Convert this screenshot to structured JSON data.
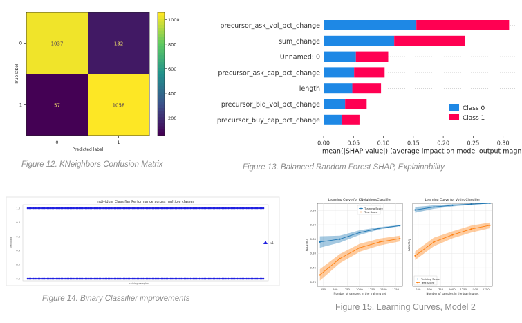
{
  "captions": {
    "fig12": "Figure 12. KNeighbors Confusion Matrix",
    "fig13": "Figure 13. Balanced Random Forest SHAP, Explainability",
    "fig14": "Figure 14. Binary Classifier improvements",
    "fig15": "Figure 15. Learning Curves, Model 2"
  },
  "chart_data": [
    {
      "type": "heatmap",
      "title": "",
      "xlabel": "Predicted label",
      "ylabel": "True label",
      "x_ticks": [
        "0",
        "1"
      ],
      "y_ticks": [
        "0",
        "1"
      ],
      "matrix": [
        [
          1037,
          132
        ],
        [
          57,
          1058
        ]
      ],
      "colorbar_ticks": [
        "200",
        "400",
        "600",
        "800",
        "1000"
      ],
      "colorbar_range": [
        57,
        1058
      ],
      "colormap": "viridis"
    },
    {
      "type": "bar",
      "orientation": "horizontal",
      "stacked": true,
      "categories": [
        "precursor_ask_vol_pct_change",
        "sum_change",
        "Unnamed: 0",
        "precursor_ask_cap_pct_change",
        "length",
        "precursor_bid_vol_pct_change",
        "precursor_buy_cap_pct_change"
      ],
      "category_labels": [
        "precursor_ask_vol_pct_change",
        "sum_change",
        "Unnamed: 0",
        "precursor_ask_cap_pct_change",
        "length",
        "precursor_bid_vol_pct_change",
        "precursor_buy_cap_pct_change"
      ],
      "series": [
        {
          "name": "Class 0",
          "color": "#1e88e5",
          "values": [
            0.155,
            0.118,
            0.054,
            0.051,
            0.048,
            0.036,
            0.03
          ]
        },
        {
          "name": "Class 1",
          "color": "#ff0052",
          "values": [
            0.155,
            0.118,
            0.054,
            0.051,
            0.048,
            0.036,
            0.03
          ]
        }
      ],
      "x_ticks": [
        "0.00",
        "0.05",
        "0.10",
        "0.15",
        "0.20",
        "0.25",
        "0.30"
      ],
      "xlim": [
        0,
        0.32
      ],
      "xlabel": "mean(|SHAP value|) (average impact on model output magn",
      "legend_position": "lower right"
    },
    {
      "type": "scatter",
      "title": "Individual Classifier Performance across multiple classes",
      "xlabel": "training samples",
      "ylabel": "predicted",
      "y_ticks": [
        "1.0",
        "0.8",
        "0.6",
        "0.4",
        "0.2",
        "0.0"
      ],
      "ylim": [
        0,
        1
      ],
      "series": [
        {
          "name": "v1",
          "color": "#1f1fe0",
          "levels": [
            1,
            0
          ]
        }
      ],
      "legend_position": "right"
    },
    {
      "type": "line",
      "title": "Learning Curve for KNeighborsClassifier",
      "xlabel": "Number of samples in the training set",
      "ylabel": "Accuracy",
      "x": [
        183,
        596,
        1010,
        1423,
        1836
      ],
      "x_ticks": [
        "250",
        "500",
        "750",
        "1000",
        "1250",
        "1500",
        "1750"
      ],
      "y_ticks": [
        "0.70",
        "0.75",
        "0.80",
        "0.85",
        "0.90",
        "0.95"
      ],
      "xlim": [
        130,
        1890
      ],
      "ylim": [
        0.685,
        0.975
      ],
      "series": [
        {
          "name": "Training Score",
          "color": "#1f77b4",
          "values": [
            0.84,
            0.85,
            0.873,
            0.888,
            0.897
          ],
          "band": [
            0.02,
            0.012,
            0.008,
            0.004,
            0.002
          ]
        },
        {
          "name": "Test Score",
          "color": "#ff7f0e",
          "values": [
            0.725,
            0.782,
            0.82,
            0.84,
            0.852
          ],
          "band": [
            0.02,
            0.016,
            0.014,
            0.012,
            0.01
          ]
        }
      ],
      "legend_position": "upper center"
    },
    {
      "type": "line",
      "title": "Learning Curve for VotingClassifier",
      "xlabel": "Number of samples in the training set",
      "ylabel": "Accuracy",
      "x": [
        183,
        596,
        1010,
        1423,
        1836
      ],
      "x_ticks": [
        "250",
        "500",
        "750",
        "1000",
        "1250",
        "1500",
        "1750"
      ],
      "ylim": [
        0.685,
        0.975
      ],
      "series": [
        {
          "name": "Training Score",
          "color": "#1f77b4",
          "values": [
            0.952,
            0.962,
            0.968,
            0.972,
            0.975
          ],
          "band": [
            0.01,
            0.006,
            0.004,
            0.002,
            0.001
          ]
        },
        {
          "name": "Test Score",
          "color": "#ff7f0e",
          "values": [
            0.792,
            0.84,
            0.865,
            0.885,
            0.898
          ],
          "band": [
            0.015,
            0.015,
            0.012,
            0.012,
            0.01
          ]
        }
      ],
      "legend_position": "lower left"
    }
  ]
}
